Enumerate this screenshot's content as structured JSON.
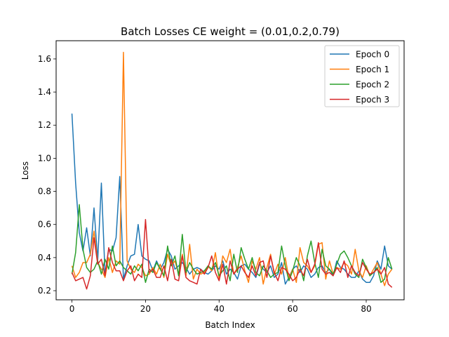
{
  "chart_data": {
    "type": "line",
    "title": "Batch Losses CE weight = (0.01,0.2,0.79)",
    "xlabel": "Batch Index",
    "ylabel": "Loss",
    "xlim": [
      -4.3,
      90.3
    ],
    "ylim": [
      0.145,
      1.71
    ],
    "x_ticks": [
      0,
      20,
      40,
      60,
      80
    ],
    "y_ticks": [
      0.2,
      0.4,
      0.6,
      0.8,
      1.0,
      1.2,
      1.4,
      1.6
    ],
    "x_tick_labels": [
      "0",
      "20",
      "40",
      "60",
      "80"
    ],
    "y_tick_labels": [
      "0.2",
      "0.4",
      "0.6",
      "0.8",
      "1.0",
      "1.2",
      "1.4",
      "1.6"
    ],
    "grid": false,
    "legend_position": "top-right",
    "series": [
      {
        "name": "Epoch 0",
        "color": "#1f77b4",
        "values": [
          1.27,
          0.85,
          0.55,
          0.44,
          0.58,
          0.41,
          0.7,
          0.38,
          0.85,
          0.3,
          0.45,
          0.44,
          0.52,
          0.89,
          0.27,
          0.35,
          0.41,
          0.42,
          0.6,
          0.41,
          0.39,
          0.38,
          0.32,
          0.38,
          0.33,
          0.37,
          0.45,
          0.41,
          0.33,
          0.35,
          0.37,
          0.34,
          0.3,
          0.33,
          0.34,
          0.33,
          0.31,
          0.3,
          0.32,
          0.35,
          0.33,
          0.38,
          0.3,
          0.33,
          0.31,
          0.27,
          0.35,
          0.36,
          0.33,
          0.31,
          0.28,
          0.36,
          0.33,
          0.31,
          0.35,
          0.28,
          0.3,
          0.37,
          0.24,
          0.28,
          0.33,
          0.35,
          0.31,
          0.35,
          0.33,
          0.28,
          0.3,
          0.34,
          0.35,
          0.31,
          0.33,
          0.29,
          0.38,
          0.34,
          0.33,
          0.3,
          0.28,
          0.28,
          0.32,
          0.27,
          0.25,
          0.25,
          0.29,
          0.38,
          0.33,
          0.47,
          0.35,
          0.33
        ]
      },
      {
        "name": "Epoch 1",
        "color": "#ff7f0e",
        "values": [
          0.35,
          0.28,
          0.31,
          0.37,
          0.37,
          0.42,
          0.56,
          0.37,
          0.33,
          0.28,
          0.4,
          0.31,
          0.38,
          0.36,
          1.64,
          0.38,
          0.33,
          0.31,
          0.36,
          0.34,
          0.29,
          0.3,
          0.34,
          0.3,
          0.36,
          0.28,
          0.42,
          0.35,
          0.38,
          0.3,
          0.42,
          0.29,
          0.48,
          0.27,
          0.33,
          0.3,
          0.31,
          0.35,
          0.32,
          0.43,
          0.27,
          0.41,
          0.37,
          0.45,
          0.3,
          0.34,
          0.41,
          0.32,
          0.25,
          0.38,
          0.33,
          0.4,
          0.24,
          0.34,
          0.42,
          0.3,
          0.36,
          0.3,
          0.4,
          0.27,
          0.33,
          0.25,
          0.46,
          0.37,
          0.35,
          0.31,
          0.35,
          0.48,
          0.49,
          0.27,
          0.38,
          0.3,
          0.34,
          0.33,
          0.37,
          0.35,
          0.3,
          0.45,
          0.32,
          0.28,
          0.35,
          0.29,
          0.33,
          0.37,
          0.3,
          0.23,
          0.3,
          0.33
        ]
      },
      {
        "name": "Epoch 2",
        "color": "#2ca02c",
        "values": [
          0.3,
          0.43,
          0.72,
          0.45,
          0.34,
          0.31,
          0.33,
          0.38,
          0.3,
          0.39,
          0.33,
          0.47,
          0.35,
          0.38,
          0.34,
          0.32,
          0.3,
          0.35,
          0.32,
          0.36,
          0.25,
          0.33,
          0.31,
          0.37,
          0.33,
          0.29,
          0.47,
          0.35,
          0.41,
          0.29,
          0.54,
          0.31,
          0.37,
          0.33,
          0.3,
          0.31,
          0.32,
          0.35,
          0.33,
          0.37,
          0.29,
          0.32,
          0.35,
          0.26,
          0.42,
          0.31,
          0.46,
          0.39,
          0.33,
          0.4,
          0.31,
          0.29,
          0.35,
          0.32,
          0.28,
          0.3,
          0.31,
          0.47,
          0.35,
          0.26,
          0.32,
          0.4,
          0.35,
          0.26,
          0.41,
          0.5,
          0.37,
          0.28,
          0.45,
          0.35,
          0.33,
          0.3,
          0.36,
          0.42,
          0.44,
          0.4,
          0.35,
          0.3,
          0.28,
          0.39,
          0.34,
          0.29,
          0.31,
          0.34,
          0.25,
          0.27,
          0.4,
          0.33
        ]
      },
      {
        "name": "Epoch 3",
        "color": "#d62728",
        "values": [
          0.31,
          0.26,
          0.27,
          0.28,
          0.21,
          0.29,
          0.52,
          0.36,
          0.39,
          0.29,
          0.46,
          0.37,
          0.32,
          0.32,
          0.26,
          0.32,
          0.35,
          0.26,
          0.3,
          0.28,
          0.63,
          0.31,
          0.33,
          0.28,
          0.28,
          0.35,
          0.26,
          0.39,
          0.27,
          0.26,
          0.41,
          0.28,
          0.26,
          0.25,
          0.24,
          0.33,
          0.3,
          0.34,
          0.41,
          0.31,
          0.26,
          0.36,
          0.24,
          0.38,
          0.3,
          0.33,
          0.35,
          0.31,
          0.28,
          0.35,
          0.29,
          0.37,
          0.38,
          0.28,
          0.41,
          0.31,
          0.26,
          0.34,
          0.33,
          0.3,
          0.26,
          0.28,
          0.33,
          0.29,
          0.39,
          0.31,
          0.36,
          0.49,
          0.33,
          0.3,
          0.31,
          0.29,
          0.34,
          0.31,
          0.38,
          0.28,
          0.35,
          0.31,
          0.29,
          0.37,
          0.33,
          0.3,
          0.31,
          0.33,
          0.3,
          0.34,
          0.24,
          0.22
        ]
      }
    ]
  }
}
